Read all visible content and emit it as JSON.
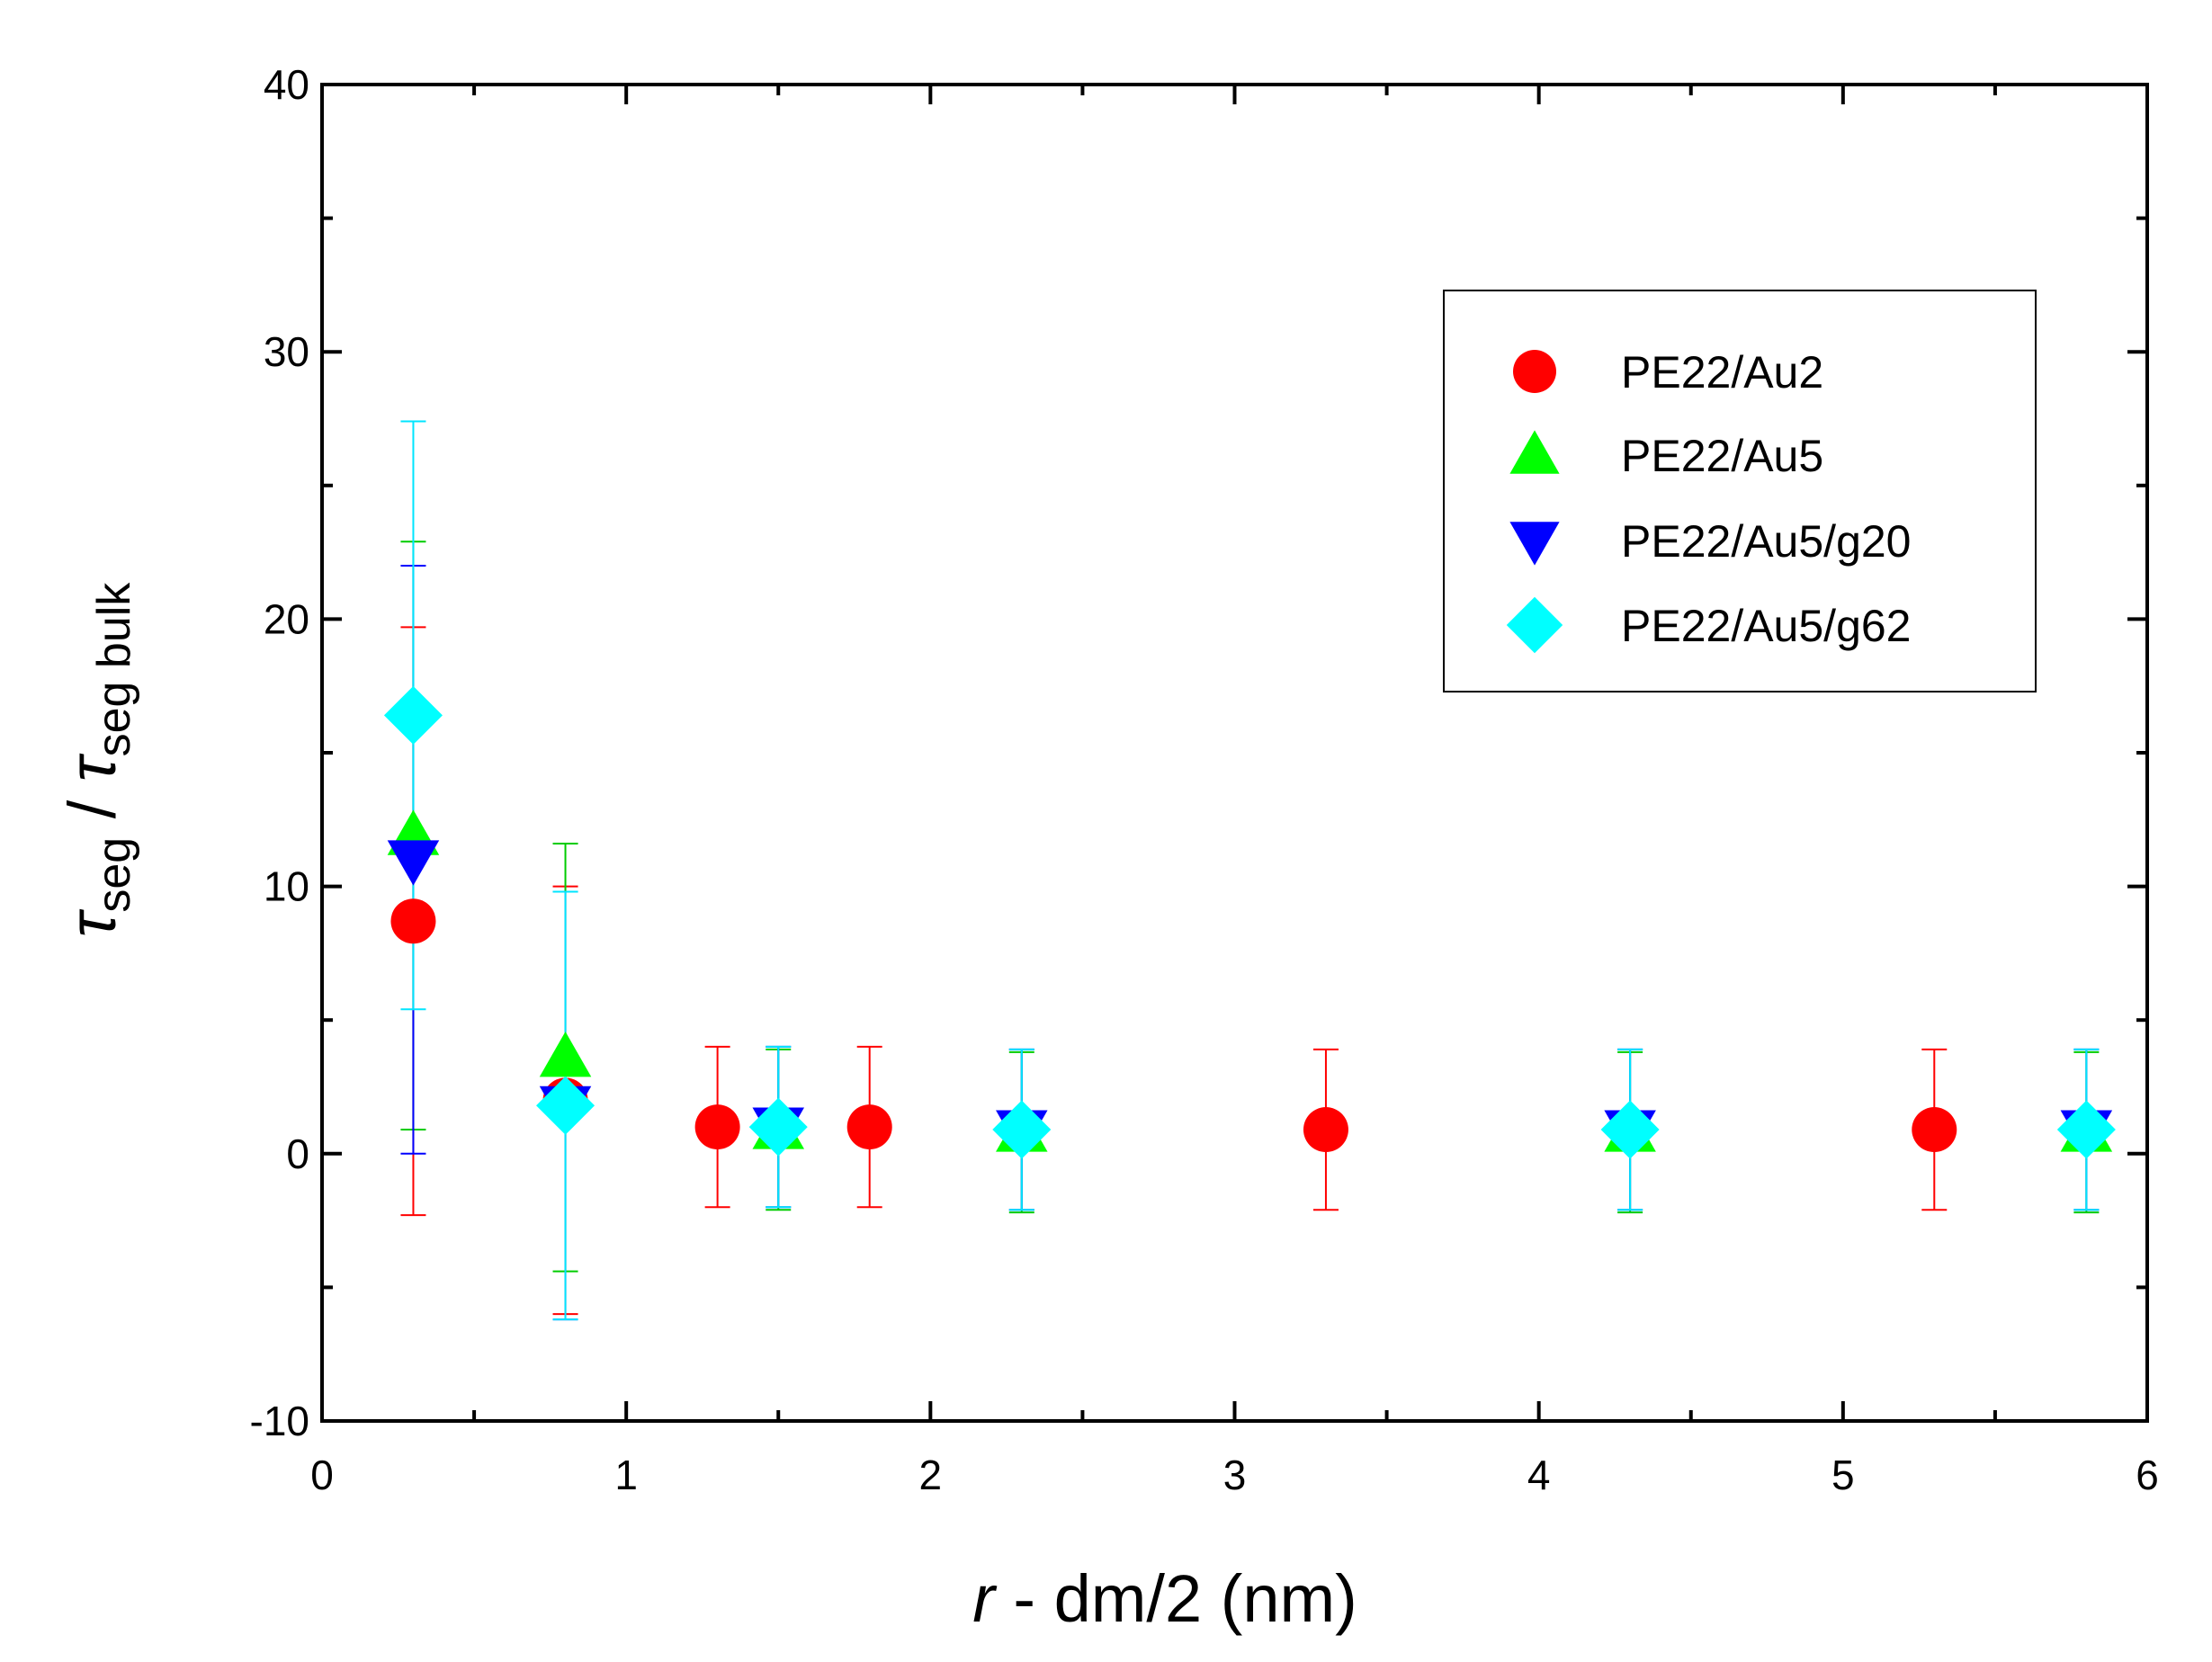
{
  "chart_data": {
    "type": "scatter",
    "title": "",
    "xlabel": {
      "italic": "r",
      "rest": " - dm/2 (nm)"
    },
    "ylabel": {
      "sym": "τ",
      "sub1": "seg",
      "sep": " / ",
      "sym2": "τ",
      "sub2": "seg bulk"
    },
    "xlim": [
      0,
      6
    ],
    "ylim": [
      -10,
      40
    ],
    "xticks": [
      0,
      1,
      2,
      3,
      4,
      5,
      6
    ],
    "yticks": [
      -10,
      0,
      10,
      20,
      30,
      40
    ],
    "legend_position": "top-right",
    "series": [
      {
        "name": "PE22/Au2",
        "marker": "circle",
        "color": "#ff0000",
        "errcolor": "#ff0000",
        "x": [
          0.3,
          0.8,
          1.3,
          1.8,
          3.3,
          5.3
        ],
        "y": [
          8.7,
          2.0,
          1.0,
          1.0,
          0.9,
          0.9
        ],
        "err": [
          11.0,
          8.0,
          3.0,
          3.0,
          3.0,
          3.0
        ]
      },
      {
        "name": "PE22/Au5",
        "marker": "triangle-up",
        "color": "#00ff00",
        "errcolor": "#00cc00",
        "x": [
          0.3,
          0.8,
          1.5,
          2.3,
          4.3,
          5.8
        ],
        "y": [
          11.9,
          3.6,
          0.9,
          0.8,
          0.8,
          0.8
        ],
        "err": [
          11.0,
          8.0,
          3.0,
          3.0,
          3.0,
          3.0
        ]
      },
      {
        "name": "PE22/Au5/g20",
        "marker": "triangle-down",
        "color": "#0000ff",
        "errcolor": "#0000ff",
        "x": [
          0.3,
          0.8,
          1.5,
          2.3,
          4.3,
          5.8
        ],
        "y": [
          11.0,
          1.8,
          1.0,
          0.9,
          0.9,
          0.9
        ],
        "err": [
          11.0,
          8.0,
          3.0,
          3.0,
          3.0,
          3.0
        ]
      },
      {
        "name": "PE22/Au5/g62",
        "marker": "diamond",
        "color": "#00ffff",
        "errcolor": "#00e5ff",
        "x": [
          0.3,
          0.8,
          1.5,
          2.3,
          4.3,
          5.8
        ],
        "y": [
          16.4,
          1.8,
          1.0,
          0.9,
          0.9,
          0.9
        ],
        "err": [
          11.0,
          8.0,
          3.0,
          3.0,
          3.0,
          3.0
        ]
      }
    ]
  }
}
